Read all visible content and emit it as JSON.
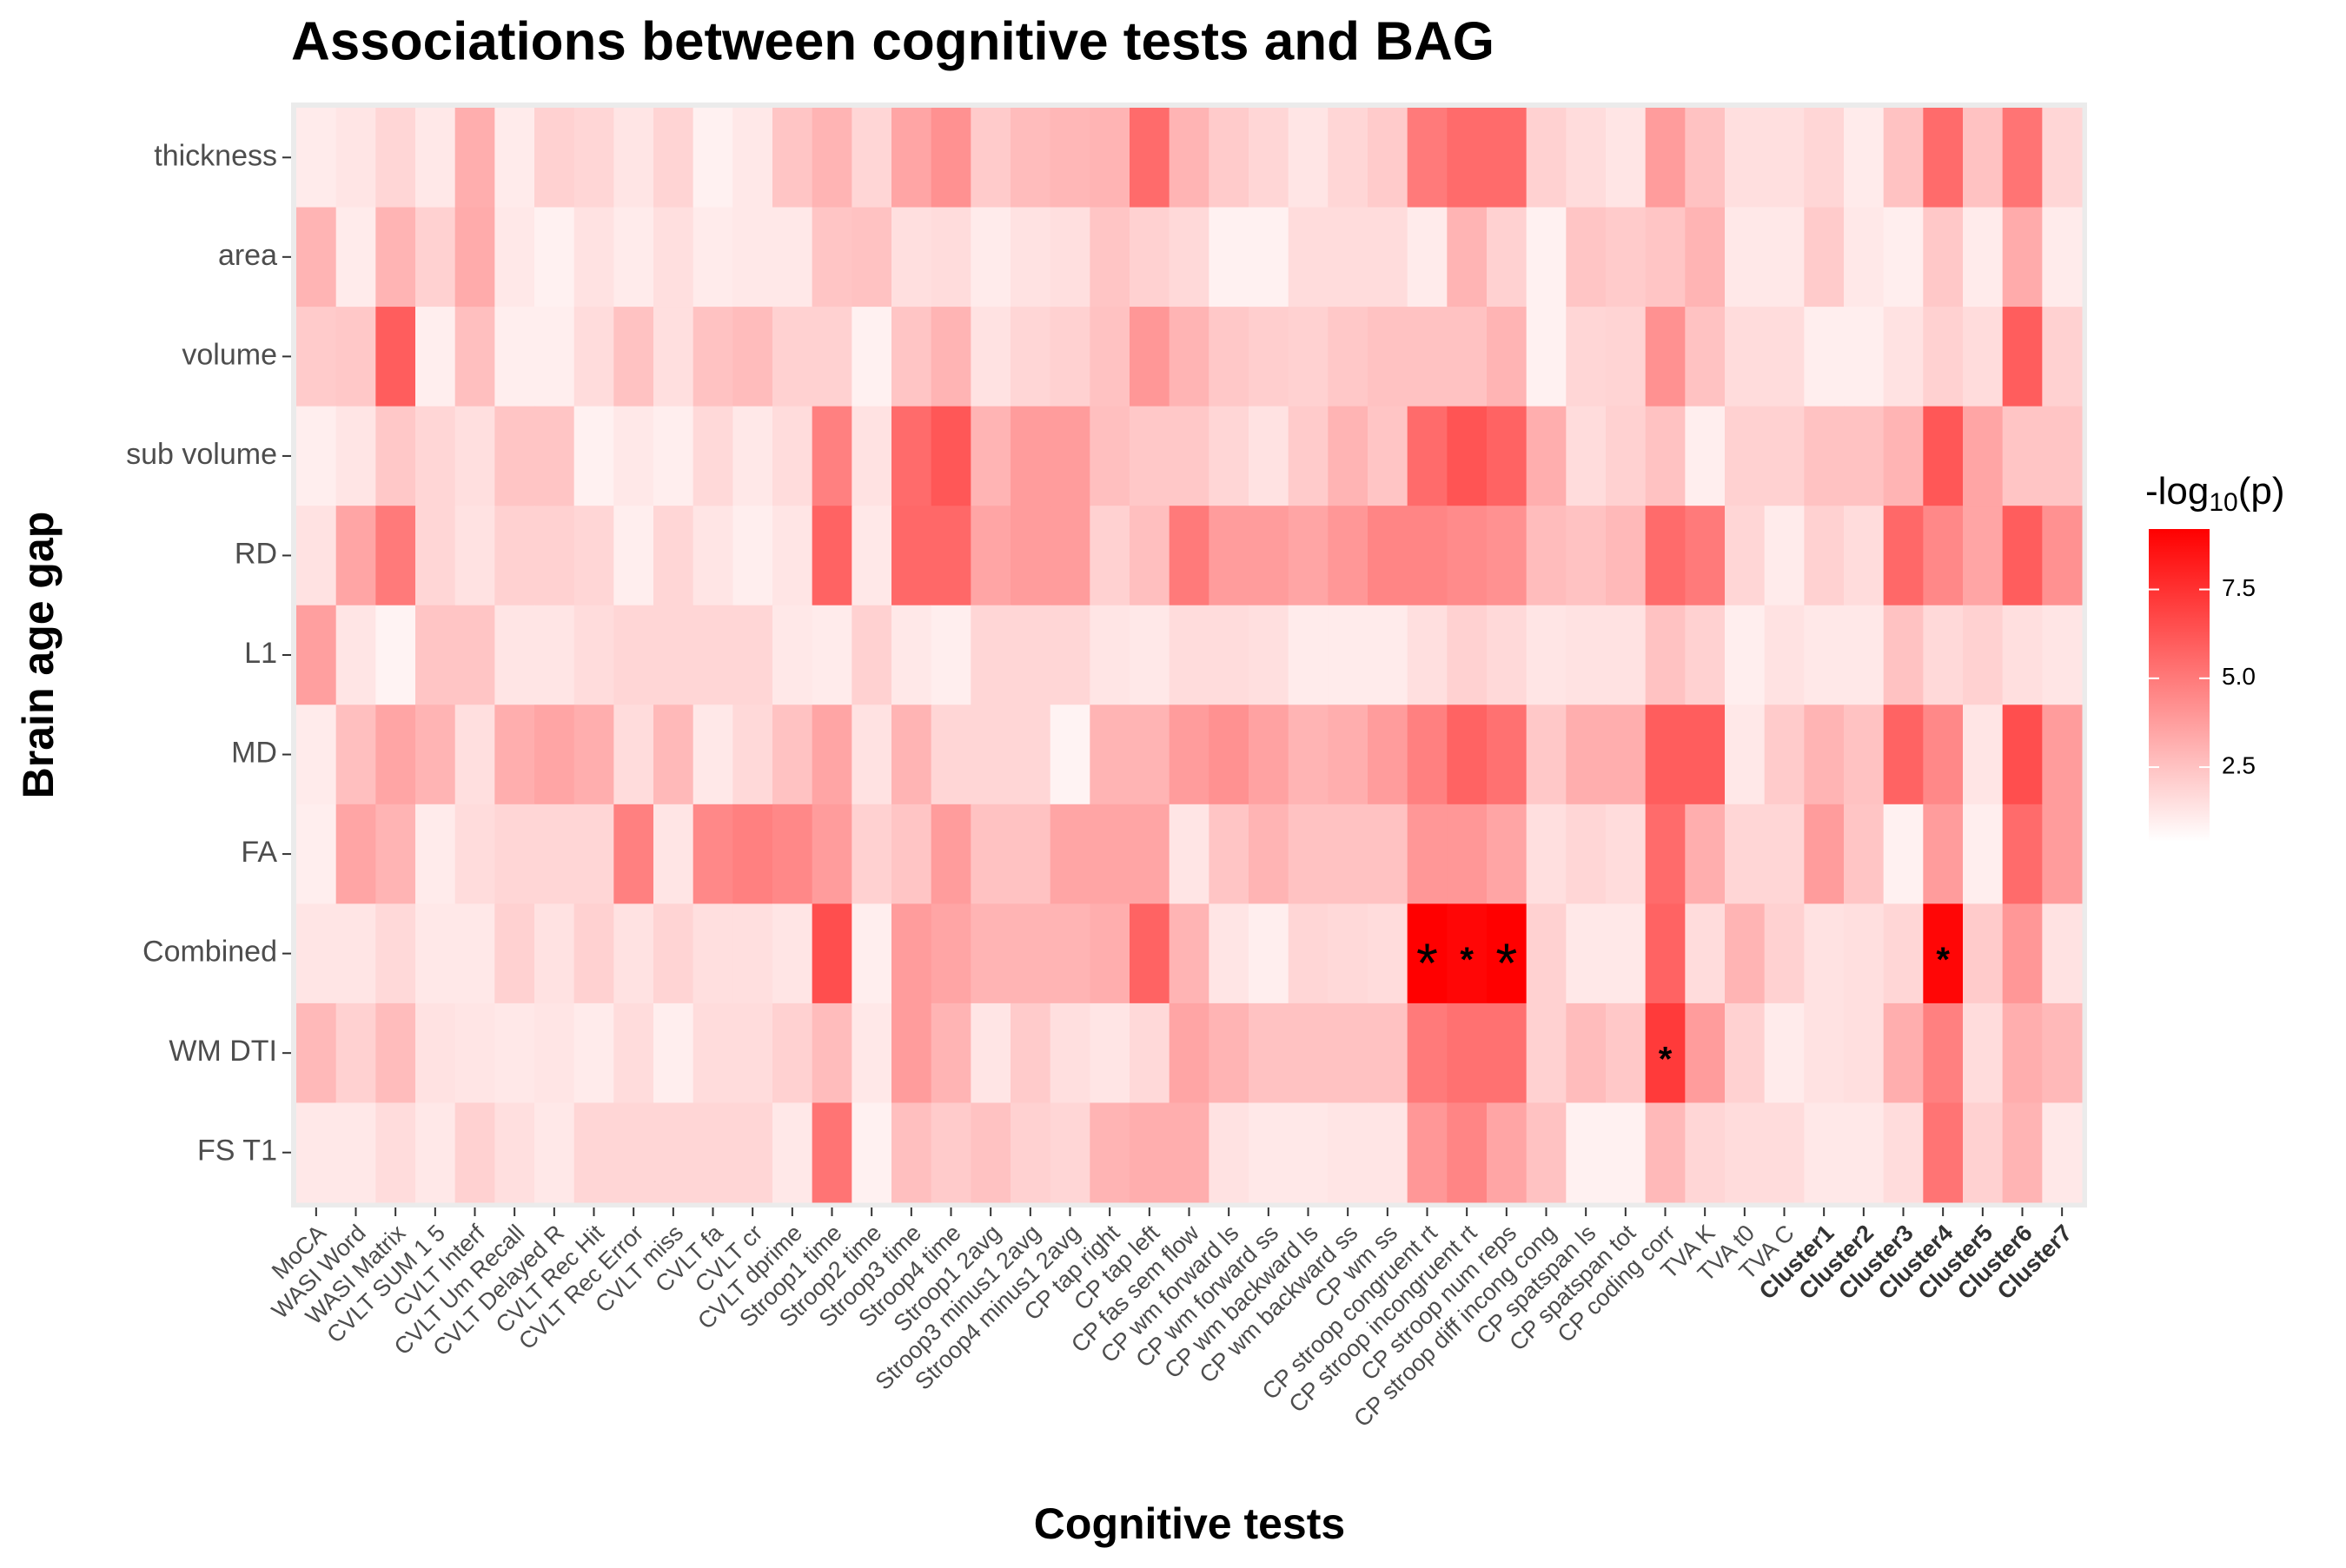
{
  "chart_data": {
    "type": "heatmap",
    "title": "Associations between cognitive tests and BAG",
    "x_label": "Cognitive tests",
    "y_label": "Brain age gap",
    "legend_title": [
      "-log",
      "10",
      "(p)"
    ],
    "x_categories": [
      "MoCA",
      "WASI Word",
      "WASI Matrix",
      "CVLT SUM 1 5",
      "CVLT Interf",
      "CVLT Um Recall",
      "CVLT Delayed R",
      "CVLT Rec Hit",
      "CVLT Rec Error",
      "CVLT miss",
      "CVLT fa",
      "CVLT cr",
      "CVLT dprime",
      "Stroop1 time",
      "Stroop2 time",
      "Stroop3 time",
      "Stroop4 time",
      "Stroop1 2avg",
      "Stroop3 minus1 2avg",
      "Stroop4 minus1 2avg",
      "CP tap right",
      "CP tap left",
      "CP fas sem flow",
      "CP wm forward ls",
      "CP wm forward ss",
      "CP wm backward ls",
      "CP wm backward ss",
      "CP wm ss",
      "CP stroop congruent rt",
      "CP stroop incongruent rt",
      "CP stroop num reps",
      "CP stroop diff incong cong",
      "CP spatspan ls",
      "CP spatspan tot",
      "CP coding corr",
      "TVA K",
      "TVA t0",
      "TVA C",
      "Cluster1",
      "Cluster2",
      "Cluster3",
      "Cluster4",
      "Cluster5",
      "Cluster6",
      "Cluster7"
    ],
    "bold_x_categories": [
      "Cluster1",
      "Cluster2",
      "Cluster3",
      "Cluster4",
      "Cluster5",
      "Cluster6",
      "Cluster7"
    ],
    "y_categories": [
      "thickness",
      "area",
      "volume",
      "sub volume",
      "RD",
      "L1",
      "MD",
      "FA",
      "Combined",
      "WM DTI",
      "FS T1"
    ],
    "values": [
      [
        1.1,
        1.3,
        1.8,
        1.2,
        3.2,
        1.1,
        2.0,
        1.8,
        1.3,
        1.9,
        0.9,
        1.2,
        2.4,
        3.0,
        1.8,
        3.5,
        4.2,
        2.2,
        2.7,
        2.9,
        3.0,
        5.5,
        3.0,
        2.2,
        1.8,
        1.3,
        1.8,
        2.2,
        5.0,
        5.5,
        5.5,
        2.0,
        1.6,
        1.3,
        3.8,
        2.5,
        1.5,
        1.5,
        1.8,
        1.1,
        2.5,
        5.5,
        2.5,
        5.2,
        1.8
      ],
      [
        3.0,
        1.1,
        3.0,
        2.0,
        3.3,
        1.2,
        0.9,
        1.4,
        1.1,
        1.5,
        1.1,
        1.2,
        1.2,
        2.4,
        2.5,
        1.5,
        1.6,
        1.1,
        1.4,
        1.5,
        2.4,
        2.0,
        1.7,
        0.9,
        0.9,
        1.6,
        1.6,
        1.6,
        1.1,
        3.0,
        2.0,
        0.9,
        2.4,
        2.2,
        2.4,
        3.0,
        1.2,
        1.2,
        2.2,
        1.2,
        1.0,
        2.3,
        1.1,
        3.3,
        1.1
      ],
      [
        2.2,
        2.3,
        6.0,
        1.0,
        2.6,
        1.0,
        1.0,
        1.6,
        2.5,
        1.5,
        2.5,
        2.7,
        2.0,
        2.0,
        0.9,
        2.4,
        3.0,
        1.4,
        1.8,
        2.0,
        2.5,
        4.0,
        3.0,
        2.3,
        2.1,
        2.0,
        2.3,
        2.5,
        2.5,
        2.5,
        3.0,
        0.9,
        1.8,
        1.9,
        4.2,
        2.5,
        1.6,
        1.6,
        1.0,
        1.0,
        1.4,
        2.0,
        1.6,
        6.0,
        2.0
      ],
      [
        1.0,
        1.3,
        2.3,
        1.8,
        1.5,
        2.4,
        2.4,
        0.9,
        1.2,
        1.0,
        1.7,
        1.2,
        1.6,
        4.8,
        1.4,
        5.5,
        6.2,
        3.0,
        3.8,
        3.8,
        2.6,
        2.3,
        2.3,
        1.8,
        1.4,
        2.2,
        3.0,
        2.4,
        5.5,
        6.3,
        5.8,
        3.2,
        1.6,
        2.0,
        2.5,
        1.0,
        2.0,
        2.0,
        2.5,
        2.5,
        3.0,
        6.2,
        3.5,
        2.4,
        2.4
      ],
      [
        1.4,
        3.5,
        5.0,
        1.8,
        1.4,
        2.0,
        2.0,
        1.8,
        1.0,
        1.8,
        1.3,
        1.0,
        1.3,
        5.8,
        1.2,
        5.6,
        5.6,
        3.5,
        3.8,
        3.8,
        2.0,
        2.6,
        5.0,
        3.8,
        3.8,
        3.5,
        4.0,
        4.6,
        4.6,
        4.4,
        4.2,
        2.7,
        2.5,
        2.8,
        5.5,
        5.0,
        1.8,
        1.1,
        2.0,
        1.6,
        5.6,
        4.5,
        3.5,
        6.0,
        4.2
      ],
      [
        3.7,
        1.3,
        0.8,
        2.4,
        2.4,
        1.3,
        1.3,
        1.6,
        1.8,
        1.8,
        1.8,
        1.8,
        1.2,
        1.1,
        2.0,
        1.2,
        1.0,
        1.8,
        1.8,
        1.8,
        1.3,
        1.2,
        1.6,
        1.6,
        1.5,
        1.1,
        1.1,
        1.1,
        1.5,
        2.0,
        1.7,
        1.3,
        1.4,
        1.4,
        2.5,
        2.0,
        1.0,
        1.4,
        1.2,
        1.2,
        2.5,
        1.7,
        2.0,
        1.5,
        1.3
      ],
      [
        1.1,
        2.6,
        3.5,
        3.0,
        1.5,
        3.2,
        3.5,
        3.2,
        1.6,
        2.8,
        1.2,
        1.7,
        2.5,
        3.5,
        1.4,
        3.0,
        1.8,
        1.8,
        1.8,
        0.8,
        3.0,
        3.0,
        3.8,
        4.2,
        3.6,
        3.0,
        3.2,
        3.8,
        4.8,
        5.8,
        5.3,
        2.3,
        3.2,
        3.2,
        6.0,
        6.0,
        1.2,
        2.2,
        3.0,
        2.5,
        5.8,
        4.5,
        1.3,
        6.5,
        3.8
      ],
      [
        1.0,
        3.5,
        3.0,
        1.1,
        1.6,
        1.8,
        1.8,
        1.8,
        4.8,
        1.3,
        4.5,
        4.8,
        4.5,
        3.8,
        2.0,
        2.4,
        3.8,
        2.5,
        2.5,
        3.5,
        3.5,
        3.5,
        1.3,
        2.4,
        3.0,
        2.5,
        2.5,
        2.5,
        4.0,
        4.0,
        3.5,
        1.5,
        1.8,
        1.6,
        5.5,
        3.2,
        1.8,
        1.8,
        3.8,
        2.4,
        0.9,
        3.8,
        1.0,
        5.5,
        3.8
      ],
      [
        1.3,
        1.3,
        1.7,
        1.2,
        1.2,
        2.0,
        1.4,
        2.0,
        1.4,
        1.9,
        1.5,
        1.5,
        1.3,
        6.5,
        1.0,
        3.8,
        3.5,
        3.0,
        3.0,
        3.0,
        3.2,
        5.8,
        3.0,
        1.3,
        1.0,
        1.8,
        1.7,
        1.6,
        9.2,
        9.0,
        9.2,
        2.0,
        1.2,
        1.2,
        5.8,
        1.6,
        3.0,
        2.0,
        1.4,
        1.5,
        1.8,
        9.0,
        2.2,
        4.0,
        1.4
      ],
      [
        2.8,
        2.0,
        2.7,
        1.4,
        1.3,
        1.2,
        1.3,
        1.1,
        1.6,
        1.0,
        1.6,
        1.6,
        2.0,
        2.7,
        1.2,
        3.8,
        3.0,
        1.3,
        2.2,
        1.5,
        1.3,
        1.7,
        3.5,
        3.0,
        2.5,
        2.5,
        2.5,
        2.5,
        5.0,
        5.3,
        5.3,
        2.0,
        2.7,
        2.3,
        7.2,
        3.8,
        2.0,
        1.1,
        1.4,
        1.5,
        3.2,
        4.8,
        1.6,
        3.2,
        2.8
      ],
      [
        1.2,
        1.2,
        1.6,
        1.2,
        2.0,
        1.5,
        1.2,
        1.8,
        1.8,
        1.8,
        1.8,
        1.8,
        1.2,
        5.2,
        0.9,
        2.6,
        2.2,
        2.5,
        2.0,
        1.8,
        3.0,
        3.2,
        3.2,
        1.4,
        1.2,
        1.2,
        1.3,
        1.3,
        4.0,
        4.6,
        3.5,
        2.5,
        0.9,
        0.9,
        2.8,
        1.8,
        1.6,
        1.6,
        1.2,
        1.2,
        1.6,
        5.2,
        2.0,
        3.0,
        1.2
      ]
    ],
    "annotations": [
      {
        "x": "CP stroop congruent rt",
        "y": "Combined",
        "label": "*",
        "size": "large"
      },
      {
        "x": "CP stroop incongruent rt",
        "y": "Combined",
        "label": "*",
        "size": "small"
      },
      {
        "x": "CP stroop num reps",
        "y": "Combined",
        "label": "*",
        "size": "large"
      },
      {
        "x": "Cluster4",
        "y": "Combined",
        "label": "*",
        "size": "small"
      },
      {
        "x": "CP coding corr",
        "y": "WM DTI",
        "label": "*",
        "size": "small"
      }
    ],
    "clim": [
      0.4,
      9.2
    ],
    "colorbar_ticks": [
      2.5,
      {
        "value": 5,
        "label": "5.0"
      },
      7.5
    ],
    "low_color": "#ffffff",
    "high_color": "#ff0000",
    "panel_color": "#ebebeb"
  }
}
